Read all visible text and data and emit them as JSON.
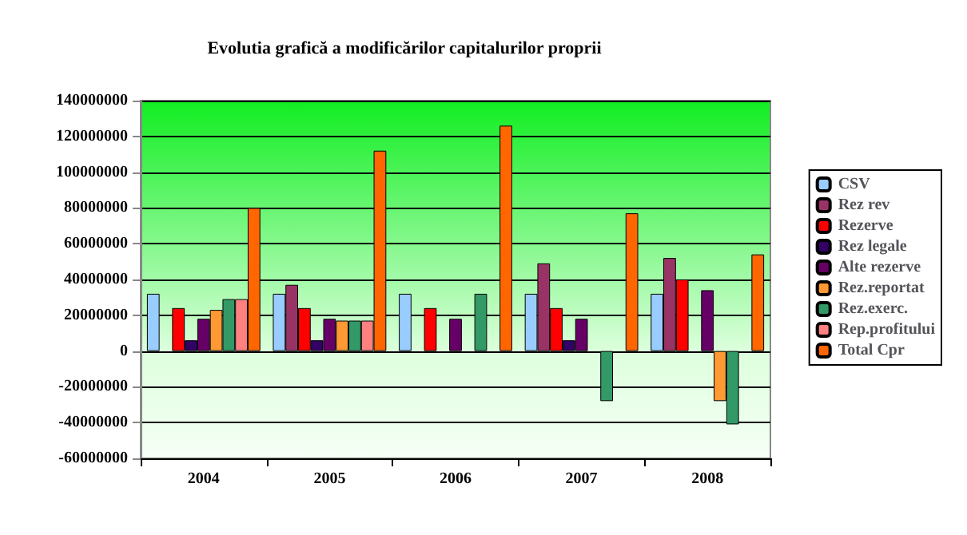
{
  "chart_data": {
    "type": "bar",
    "title": "Evolutia grafică a modificărilor capitalurilor proprii",
    "categories": [
      "2004",
      "2005",
      "2006",
      "2007",
      "2008"
    ],
    "series": [
      {
        "name": "CSV",
        "color": "#99ccff",
        "values": [
          32000000,
          32000000,
          32000000,
          32000000,
          32000000
        ]
      },
      {
        "name": "Rez rev",
        "color": "#993366",
        "values": [
          null,
          37000000,
          null,
          49000000,
          52000000
        ]
      },
      {
        "name": "Rezerve",
        "color": "#ff0000",
        "values": [
          24000000,
          24000000,
          24000000,
          24000000,
          40000000
        ]
      },
      {
        "name": "Rez legale",
        "color": "#330066",
        "values": [
          6000000,
          6000000,
          null,
          6000000,
          null
        ]
      },
      {
        "name": "Alte rezerve",
        "color": "#660066",
        "values": [
          18000000,
          18000000,
          18000000,
          18000000,
          34000000
        ]
      },
      {
        "name": "Rez.reportat",
        "color": "#ff9933",
        "values": [
          23000000,
          17000000,
          null,
          null,
          -28000000
        ]
      },
      {
        "name": "Rez.exerc.",
        "color": "#339966",
        "values": [
          29000000,
          17000000,
          32000000,
          -28000000,
          -41000000
        ]
      },
      {
        "name": "Rep.profitului",
        "color": "#ff8080",
        "values": [
          29000000,
          17000000,
          null,
          null,
          null
        ]
      },
      {
        "name": "Total Cpr",
        "color": "#ff6600",
        "values": [
          80000000,
          112000000,
          126000000,
          77000000,
          54000000
        ]
      }
    ],
    "ylim": [
      -60000000,
      140000000
    ],
    "yticks": [
      -60000000,
      -40000000,
      -20000000,
      0,
      20000000,
      40000000,
      60000000,
      80000000,
      100000000,
      120000000,
      140000000
    ],
    "grid": "y",
    "legend": "right"
  }
}
